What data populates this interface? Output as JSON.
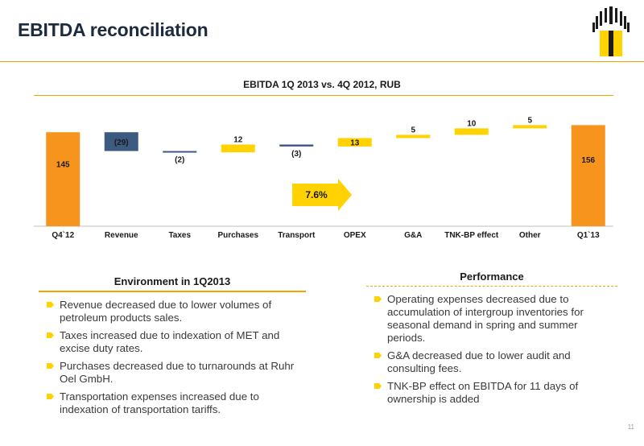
{
  "slide": {
    "title": "EBITDA reconciliation",
    "page_number": "11",
    "logo_icon": "rosneft-logo-icon"
  },
  "chart_data": {
    "type": "bar",
    "subtype": "waterfall",
    "title": "EBITDA 1Q 2013 vs. 4Q 2012, RUB",
    "categories": [
      "Q4`12",
      "Revenue",
      "Taxes",
      "Purchases",
      "Transport",
      "OPEX",
      "G&A",
      "TNK-BP effect",
      "Other",
      "Q1`13"
    ],
    "values": [
      145,
      -29,
      -2,
      12,
      -3,
      13,
      5,
      10,
      5,
      156
    ],
    "data_labels": [
      "145",
      "(29)",
      "(2)",
      "12",
      "(3)",
      "13",
      "5",
      "10",
      "5",
      "156"
    ],
    "kinds": [
      "total",
      "delta",
      "delta",
      "delta",
      "delta",
      "delta",
      "delta",
      "delta",
      "delta",
      "total"
    ],
    "callout": "7.6%",
    "colors": {
      "total": "#f7941d",
      "decrease": "#3d5a80",
      "increase": "#ffd200",
      "text": "#1a1a1a",
      "axis": "#bfbfbf",
      "accent": "#f5a500"
    },
    "ylim": [
      0,
      190
    ]
  },
  "environment": {
    "header": "Environment in 1Q2013",
    "items": [
      "Revenue decreased due to lower volumes of petroleum products sales.",
      "Taxes increased due to indexation of MET and excise duty rates.",
      "Purchases decreased due to turnarounds at Ruhr Oel GmbH.",
      "Transportation expenses increased due to indexation of transportation tariffs."
    ]
  },
  "performance": {
    "header": "Performance",
    "items": [
      "Operating expenses decreased due to accumulation of intergroup inventories for seasonal demand in spring and summer periods.",
      "G&A decreased due to lower audit and consulting fees.",
      "TNK-BP effect on EBITDA for 11 days of ownership is added"
    ]
  },
  "bullet_icon": "yellow-arrow-bullet-icon"
}
